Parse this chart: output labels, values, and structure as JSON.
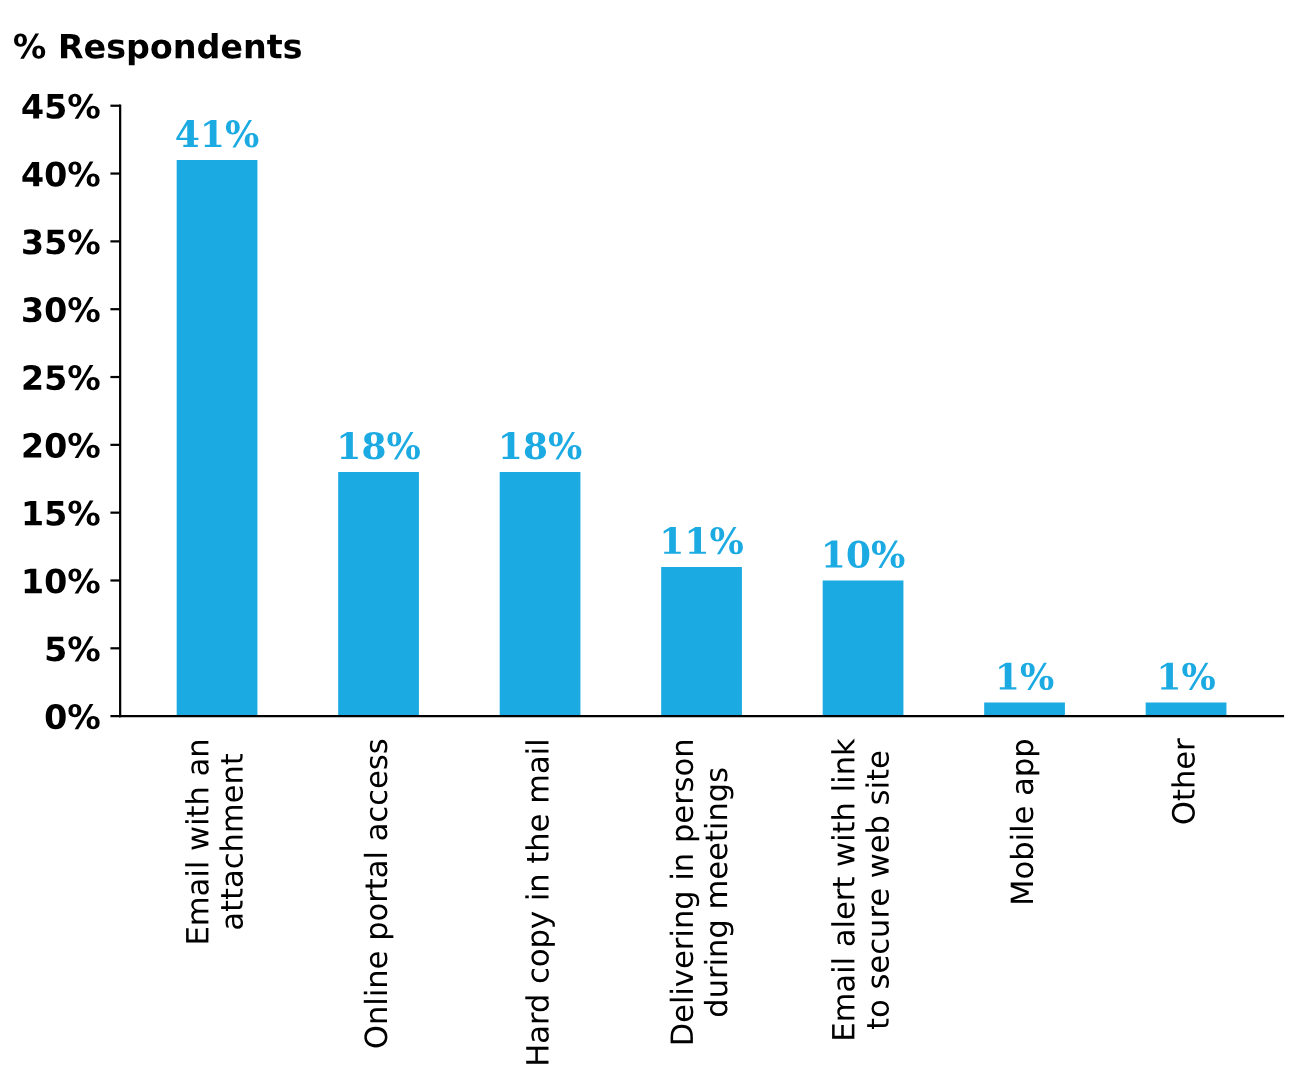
{
  "chart_data": {
    "type": "bar",
    "ylabel": "% Respondents",
    "categories": [
      "Email with an\nattachment",
      "Online portal access",
      "Hard copy in the mail",
      "Delivering in person\nduring meetings",
      "Email alert with link\nto secure web site",
      "Mobile app",
      "Other"
    ],
    "values": [
      41,
      18,
      18,
      11,
      10,
      1,
      1
    ],
    "value_labels": [
      "41%",
      "18%",
      "18%",
      "11%",
      "10%",
      "1%",
      "1%"
    ],
    "color": "#1baae2",
    "ylim": [
      0,
      45
    ],
    "yticks": [
      {
        "value": 0,
        "label": "0%"
      },
      {
        "value": 5,
        "label": "5%"
      },
      {
        "value": 10,
        "label": "10%"
      },
      {
        "value": 15,
        "label": "15%"
      },
      {
        "value": 20,
        "label": "20%"
      },
      {
        "value": 25,
        "label": "25%"
      },
      {
        "value": 30,
        "label": "30%"
      },
      {
        "value": 35,
        "label": "35%"
      },
      {
        "value": 40,
        "label": "40%"
      },
      {
        "value": 45,
        "label": "45%"
      }
    ],
    "grid": false
  }
}
